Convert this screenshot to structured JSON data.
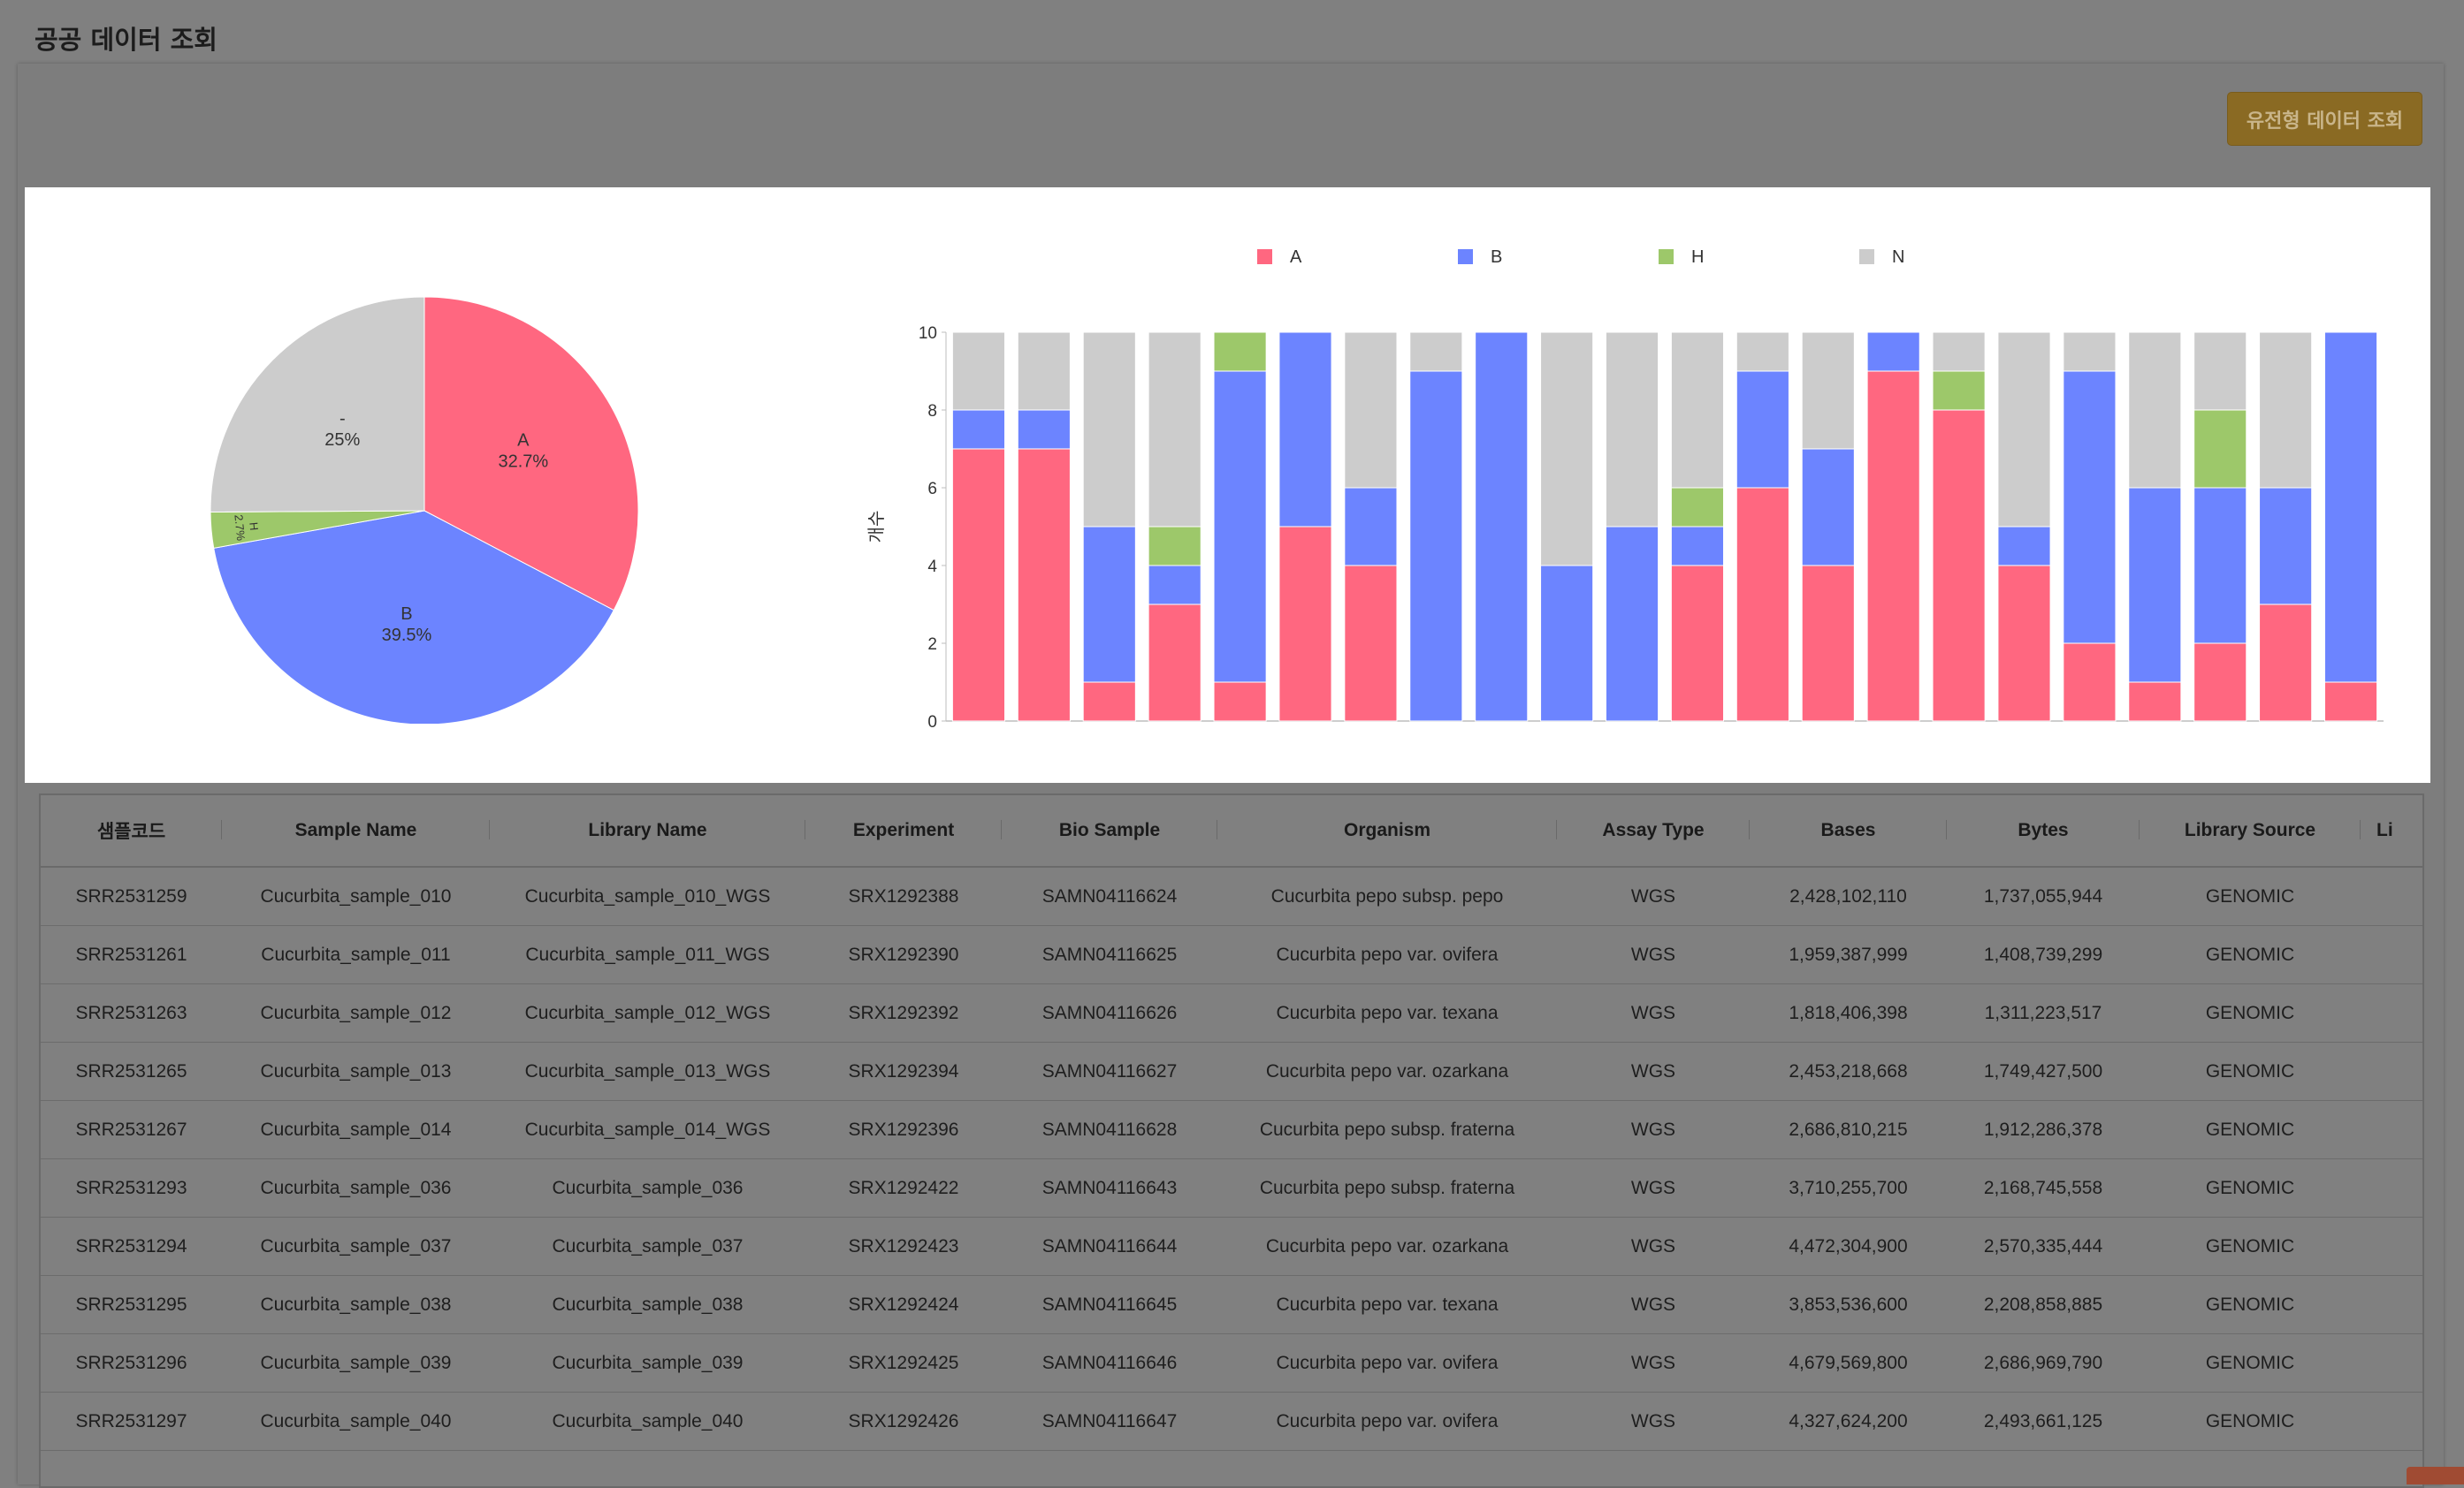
{
  "page": {
    "title": "공공 데이터 조회",
    "genotype_button": "유전형 데이터 조회"
  },
  "colors": {
    "A": "#ff6780",
    "B": "#6c84ff",
    "H": "#9dc86a",
    "N": "#cccccc"
  },
  "chart_data": [
    {
      "type": "pie",
      "slices": [
        {
          "label": "A",
          "percent": "32.7%",
          "value": 32.7,
          "color": "#ff6780"
        },
        {
          "label": "B",
          "percent": "39.5%",
          "value": 39.5,
          "color": "#6c84ff"
        },
        {
          "label": "H",
          "percent": "2.7%",
          "value": 2.7,
          "color": "#9dc86a"
        },
        {
          "label": "-",
          "percent": "25%",
          "value": 25.1,
          "color": "#cccccc"
        }
      ]
    },
    {
      "type": "bar",
      "stacked": true,
      "ylabel": "개수",
      "ylim": [
        0,
        10
      ],
      "yticks": [
        0,
        2,
        4,
        6,
        8,
        10
      ],
      "legend": [
        "A",
        "B",
        "H",
        "N"
      ],
      "legend_position": "top",
      "series": [
        {
          "name": "A",
          "values": [
            7,
            7,
            1,
            3,
            1,
            5,
            4,
            0,
            0,
            0,
            0,
            4,
            6,
            4,
            9,
            8,
            4,
            2,
            1,
            2,
            3,
            1
          ]
        },
        {
          "name": "B",
          "values": [
            1,
            1,
            4,
            1,
            8,
            5,
            2,
            9,
            10,
            4,
            5,
            1,
            3,
            3,
            1,
            0,
            1,
            7,
            5,
            4,
            3,
            9
          ]
        },
        {
          "name": "H",
          "values": [
            0,
            0,
            0,
            1,
            1,
            0,
            0,
            0,
            0,
            0,
            0,
            1,
            0,
            0,
            0,
            1,
            0,
            0,
            0,
            2,
            0,
            0
          ]
        },
        {
          "name": "N",
          "values": [
            2,
            2,
            5,
            5,
            0,
            0,
            4,
            1,
            0,
            6,
            5,
            4,
            1,
            3,
            0,
            1,
            5,
            1,
            4,
            2,
            4,
            0
          ]
        }
      ]
    }
  ],
  "table": {
    "columns": [
      "샘플코드",
      "Sample Name",
      "Library Name",
      "Experiment",
      "Bio Sample",
      "Organism",
      "Assay Type",
      "Bases",
      "Bytes",
      "Library Source",
      "Li"
    ],
    "rows": [
      [
        "SRR2531259",
        "Cucurbita_sample_010",
        "Cucurbita_sample_010_WGS",
        "SRX1292388",
        "SAMN04116624",
        "Cucurbita pepo subsp. pepo",
        "WGS",
        "2,428,102,110",
        "1,737,055,944",
        "GENOMIC",
        ""
      ],
      [
        "SRR2531261",
        "Cucurbita_sample_011",
        "Cucurbita_sample_011_WGS",
        "SRX1292390",
        "SAMN04116625",
        "Cucurbita pepo var. ovifera",
        "WGS",
        "1,959,387,999",
        "1,408,739,299",
        "GENOMIC",
        ""
      ],
      [
        "SRR2531263",
        "Cucurbita_sample_012",
        "Cucurbita_sample_012_WGS",
        "SRX1292392",
        "SAMN04116626",
        "Cucurbita pepo var. texana",
        "WGS",
        "1,818,406,398",
        "1,311,223,517",
        "GENOMIC",
        ""
      ],
      [
        "SRR2531265",
        "Cucurbita_sample_013",
        "Cucurbita_sample_013_WGS",
        "SRX1292394",
        "SAMN04116627",
        "Cucurbita pepo var. ozarkana",
        "WGS",
        "2,453,218,668",
        "1,749,427,500",
        "GENOMIC",
        ""
      ],
      [
        "SRR2531267",
        "Cucurbita_sample_014",
        "Cucurbita_sample_014_WGS",
        "SRX1292396",
        "SAMN04116628",
        "Cucurbita pepo subsp. fraterna",
        "WGS",
        "2,686,810,215",
        "1,912,286,378",
        "GENOMIC",
        ""
      ],
      [
        "SRR2531293",
        "Cucurbita_sample_036",
        "Cucurbita_sample_036",
        "SRX1292422",
        "SAMN04116643",
        "Cucurbita pepo subsp. fraterna",
        "WGS",
        "3,710,255,700",
        "2,168,745,558",
        "GENOMIC",
        ""
      ],
      [
        "SRR2531294",
        "Cucurbita_sample_037",
        "Cucurbita_sample_037",
        "SRX1292423",
        "SAMN04116644",
        "Cucurbita pepo var. ozarkana",
        "WGS",
        "4,472,304,900",
        "2,570,335,444",
        "GENOMIC",
        ""
      ],
      [
        "SRR2531295",
        "Cucurbita_sample_038",
        "Cucurbita_sample_038",
        "SRX1292424",
        "SAMN04116645",
        "Cucurbita pepo var. texana",
        "WGS",
        "3,853,536,600",
        "2,208,858,885",
        "GENOMIC",
        ""
      ],
      [
        "SRR2531296",
        "Cucurbita_sample_039",
        "Cucurbita_sample_039",
        "SRX1292425",
        "SAMN04116646",
        "Cucurbita pepo var. ovifera",
        "WGS",
        "4,679,569,800",
        "2,686,969,790",
        "GENOMIC",
        ""
      ],
      [
        "SRR2531297",
        "Cucurbita_sample_040",
        "Cucurbita_sample_040",
        "SRX1292426",
        "SAMN04116647",
        "Cucurbita pepo var. ovifera",
        "WGS",
        "4,327,624,200",
        "2,493,661,125",
        "GENOMIC",
        ""
      ]
    ]
  }
}
